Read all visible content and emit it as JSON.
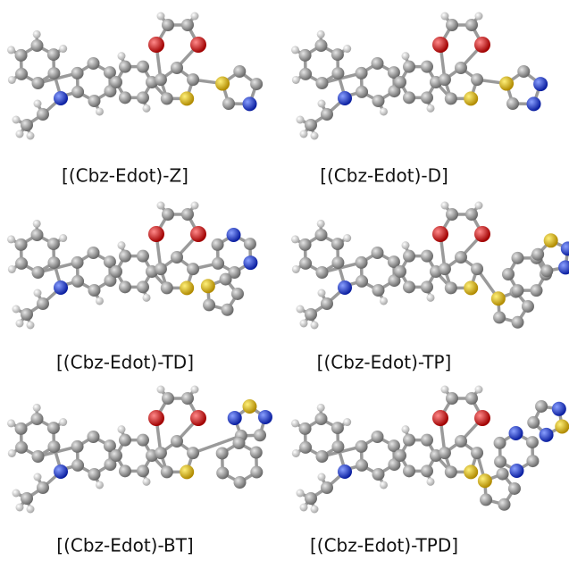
{
  "panels": [
    {
      "label": "[(Cbz-Edot)-Z]"
    },
    {
      "label": "[(Cbz-Edot)-D]"
    },
    {
      "label": "[(Cbz-Edot)-TD]"
    },
    {
      "label": "[(Cbz-Edot)-TP]"
    },
    {
      "label": "[(Cbz-Edot)-BT]"
    },
    {
      "label": "[(Cbz-Edot)-TPD]"
    }
  ]
}
